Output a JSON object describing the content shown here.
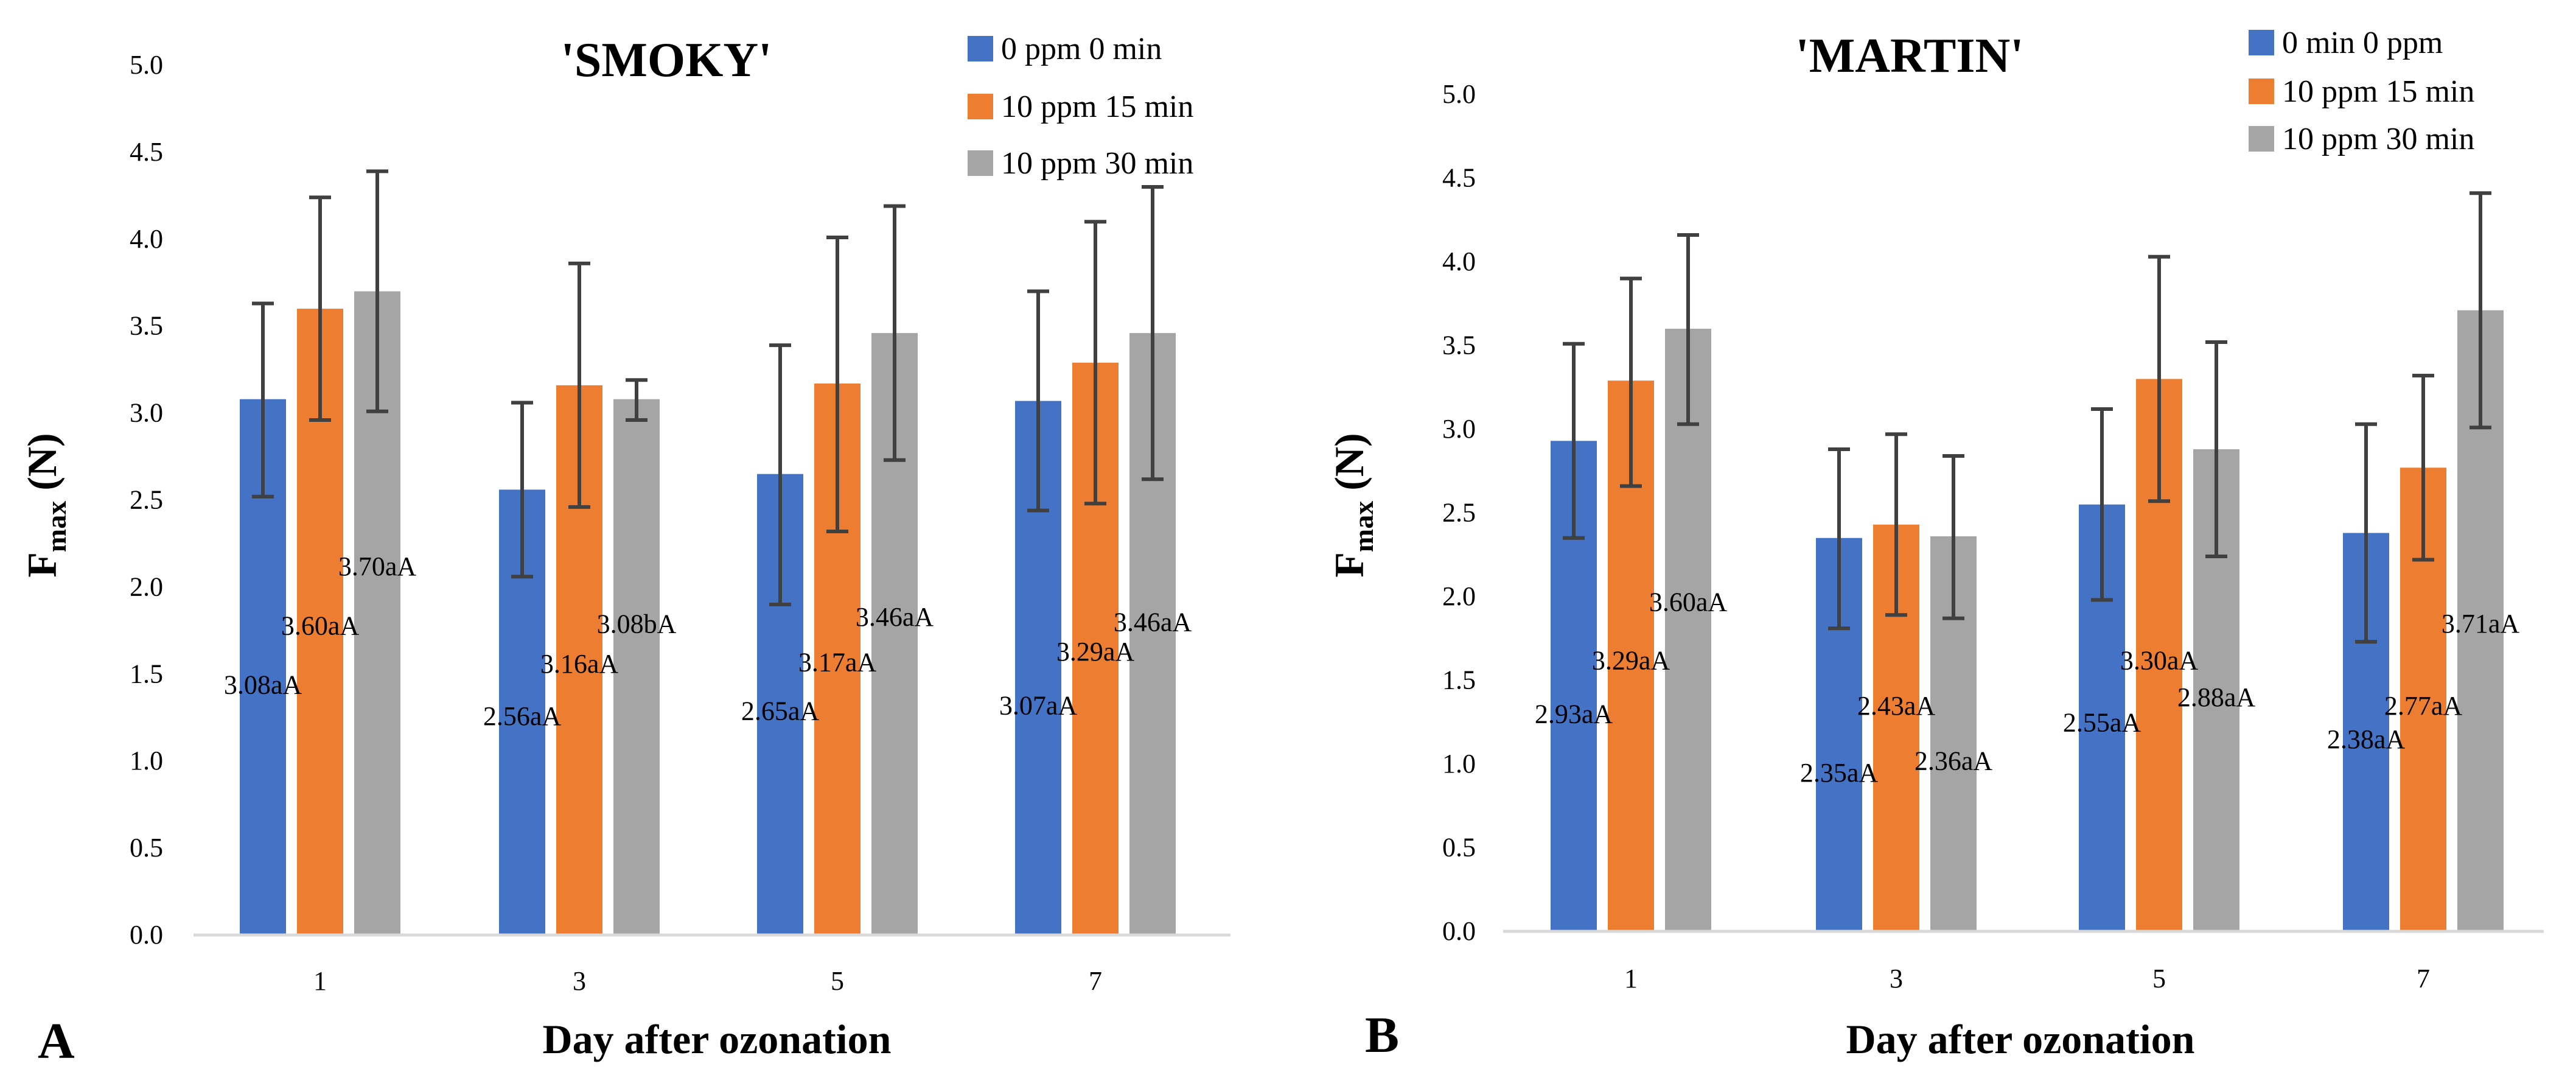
{
  "colors": {
    "series": [
      "#4472C4",
      "#ED7D31",
      "#A5A5A5"
    ],
    "axis": "#D9D9D9",
    "errorbar": "#404040",
    "text": "#000000"
  },
  "chart_data": [
    {
      "type": "bar",
      "panel_letter": "A",
      "title": "'SMOKY'",
      "ylabel_main": "F",
      "ylabel_sub": "max",
      "ylabel_unit": " (N)",
      "xlabel": "Day after ozonation",
      "categories": [
        "1",
        "3",
        "5",
        "7"
      ],
      "ylim": [
        0,
        5
      ],
      "yticks": [
        "0.0",
        "0.5",
        "1.0",
        "1.5",
        "2.0",
        "2.5",
        "3.0",
        "3.5",
        "4.0",
        "4.5",
        "5.0"
      ],
      "grid": false,
      "legend_position": "top-right",
      "series": [
        {
          "name": "0 ppm 0 min",
          "values": [
            3.08,
            2.56,
            2.65,
            3.07
          ],
          "err_low": [
            2.52,
            2.06,
            1.9,
            2.44
          ],
          "err_high": [
            3.63,
            3.06,
            3.39,
            3.7
          ],
          "labels": [
            "3.08aA",
            "2.56aA",
            "2.65aA",
            "3.07aA"
          ],
          "label_y": [
            1.44,
            1.26,
            1.29,
            1.32
          ]
        },
        {
          "name": "10 ppm 15 min",
          "values": [
            3.6,
            3.16,
            3.17,
            3.29
          ],
          "err_low": [
            2.96,
            2.46,
            2.32,
            2.48
          ],
          "err_high": [
            4.24,
            3.86,
            4.01,
            4.1
          ],
          "labels": [
            "3.60aA",
            "3.16aA",
            "3.17aA",
            "3.29aA"
          ],
          "label_y": [
            1.78,
            1.56,
            1.57,
            1.63
          ]
        },
        {
          "name": "10 ppm 30 min",
          "values": [
            3.7,
            3.08,
            3.46,
            3.46
          ],
          "err_low": [
            3.01,
            2.96,
            2.73,
            2.62
          ],
          "err_high": [
            4.39,
            3.19,
            4.19,
            4.3
          ],
          "labels": [
            "3.70aA",
            "3.08bA",
            "3.46aA",
            "3.46aA"
          ],
          "label_y": [
            2.12,
            1.79,
            1.83,
            1.8
          ]
        }
      ]
    },
    {
      "type": "bar",
      "panel_letter": "B",
      "title": "'MARTIN'",
      "ylabel_main": "F",
      "ylabel_sub": "max",
      "ylabel_unit": " (N)",
      "xlabel": "Day after ozonation",
      "categories": [
        "1",
        "3",
        "5",
        "7"
      ],
      "ylim": [
        0,
        5
      ],
      "yticks": [
        "0.0",
        "0.5",
        "1.0",
        "1.5",
        "2.0",
        "2.5",
        "3.0",
        "3.5",
        "4.0",
        "4.5",
        "5.0"
      ],
      "grid": false,
      "legend_position": "top-right",
      "series": [
        {
          "name": "0 min 0 ppm",
          "values": [
            2.93,
            2.35,
            2.55,
            2.38
          ],
          "err_low": [
            2.35,
            1.81,
            1.98,
            1.73
          ],
          "err_high": [
            3.51,
            2.88,
            3.12,
            3.03
          ],
          "labels": [
            "2.93aA",
            "2.35aA",
            "2.55aA",
            "2.38aA"
          ],
          "label_y": [
            1.3,
            0.95,
            1.25,
            1.15
          ]
        },
        {
          "name": "10 ppm 15 min",
          "values": [
            3.29,
            2.43,
            3.3,
            2.77
          ],
          "err_low": [
            2.66,
            1.89,
            2.57,
            2.22
          ],
          "err_high": [
            3.9,
            2.97,
            4.03,
            3.32
          ],
          "labels": [
            "3.29aA",
            "2.43aA",
            "3.30aA",
            "2.77aA"
          ],
          "label_y": [
            1.62,
            1.35,
            1.62,
            1.35
          ]
        },
        {
          "name": "10 ppm 30 min",
          "values": [
            3.6,
            2.36,
            2.88,
            3.71
          ],
          "err_low": [
            3.03,
            1.87,
            2.24,
            3.01
          ],
          "err_high": [
            4.16,
            2.84,
            3.52,
            4.41
          ],
          "labels": [
            "3.60aA",
            "2.36aA",
            "2.88aA",
            "3.71aA"
          ],
          "label_y": [
            1.97,
            1.02,
            1.4,
            1.84
          ]
        }
      ]
    }
  ]
}
